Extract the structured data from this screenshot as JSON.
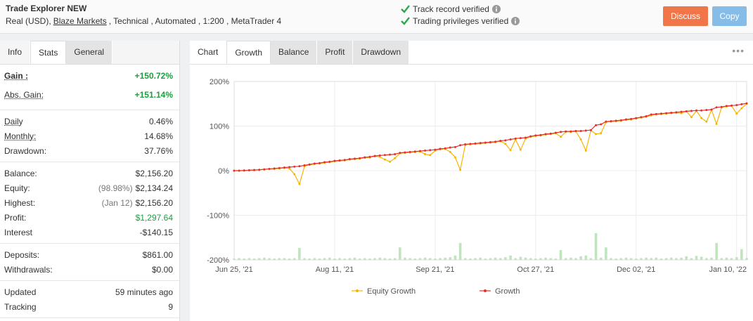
{
  "header": {
    "title": "Trade Explorer NEW",
    "subtitle": [
      "Real (USD),",
      "Blaze Markets",
      ", Technical , Automated , 1:200 , MetaTrader 4"
    ],
    "verified": [
      "Track record verified",
      "Trading privileges verified"
    ],
    "buttons": [
      "Discuss",
      "Copy"
    ]
  },
  "left_tabs": [
    "Info",
    "Stats",
    "General"
  ],
  "stats": [
    [
      {
        "label": "Gain :",
        "value": "+150.72%",
        "color": "#1e9e3e"
      },
      {
        "label": "Abs. Gain:",
        "value": "+151.14%",
        "color": "#1e9e3e"
      }
    ],
    [
      {
        "label": "Daily",
        "value": "0.46%"
      },
      {
        "label": "Monthly:",
        "value": "14.68%"
      },
      {
        "label": "Drawdown:",
        "value": "37.76%"
      }
    ],
    [
      {
        "label": "Balance:",
        "value": "$2,156.20"
      },
      {
        "label": "Equity:",
        "note": "(98.98%)",
        "value": "$2,134.24"
      },
      {
        "label": "Highest:",
        "note": "(Jan 12)",
        "value": "$2,156.20"
      },
      {
        "label": "Profit:",
        "value": "$1,297.64",
        "color": "#1e9e3e"
      },
      {
        "label": "Interest",
        "value": "-$140.15"
      }
    ],
    [
      {
        "label": "Deposits:",
        "value": "$861.00"
      },
      {
        "label": "Withdrawals:",
        "value": "$0.00"
      }
    ],
    [
      {
        "label": "Updated",
        "value": "59 minutes ago"
      },
      {
        "label": "Tracking",
        "value": "9"
      }
    ]
  ],
  "chart_tabs": [
    "Chart",
    "Growth",
    "Balance",
    "Profit",
    "Drawdown"
  ],
  "chart_data": {
    "type": "line",
    "categories": [
      "Jun 25, '21",
      null,
      null,
      null,
      null,
      null,
      null,
      null,
      null,
      null,
      null,
      null,
      null,
      null,
      null,
      null,
      null,
      null,
      null,
      null,
      "Aug 11, '21",
      null,
      null,
      null,
      null,
      null,
      null,
      null,
      null,
      null,
      null,
      null,
      null,
      null,
      null,
      null,
      null,
      null,
      null,
      null,
      "Sep 21, '21",
      null,
      null,
      null,
      null,
      null,
      null,
      null,
      null,
      null,
      null,
      null,
      null,
      null,
      null,
      null,
      null,
      null,
      null,
      null,
      "Oct 27, '21",
      null,
      null,
      null,
      null,
      null,
      null,
      null,
      null,
      null,
      null,
      null,
      null,
      null,
      null,
      null,
      null,
      null,
      null,
      null,
      "Dec 02, '21",
      null,
      null,
      null,
      null,
      null,
      null,
      null,
      null,
      null,
      null,
      null,
      null,
      null,
      null,
      null,
      null,
      null,
      null,
      null,
      "Jan 10, '22",
      null,
      null
    ],
    "series": [
      {
        "type": "bar",
        "color": "#bfe5bf",
        "values": [
          -197,
          -196,
          -197,
          -196,
          -197,
          -196,
          -195,
          -196,
          -197,
          -196,
          -196,
          -197,
          -196,
          -173,
          -196,
          -197,
          -196,
          -197,
          -196,
          -195,
          -197,
          -196,
          -197,
          -196,
          -195,
          -197,
          -196,
          -197,
          -196,
          -195,
          -196,
          -197,
          -196,
          -172,
          -195,
          -196,
          -197,
          -196,
          -195,
          -196,
          -197,
          -196,
          -195,
          -194,
          -190,
          -162,
          -196,
          -197,
          -196,
          -195,
          -197,
          -196,
          -195,
          -196,
          -194,
          -190,
          -196,
          -193,
          -195,
          -196,
          -197,
          -196,
          -195,
          -196,
          -197,
          -178,
          -196,
          -195,
          -196,
          -192,
          -190,
          -196,
          -140,
          -195,
          -172,
          -196,
          -197,
          -196,
          -195,
          -196,
          -197,
          -196,
          -195,
          -196,
          -195,
          -197,
          -196,
          -195,
          -196,
          -195,
          -192,
          -196,
          -191,
          -193,
          -196,
          -195,
          -162,
          -196,
          -195,
          -196,
          -194,
          -176,
          -196
        ]
      },
      {
        "name": "Equity Growth",
        "color": "#f7b500",
        "values": [
          0,
          0,
          0,
          1,
          1,
          2,
          3,
          4,
          4,
          5,
          6,
          5,
          -8,
          -30,
          10,
          13,
          15,
          16,
          18,
          19,
          21,
          22,
          23,
          25,
          26,
          27,
          29,
          30,
          32,
          31,
          25,
          20,
          28,
          39,
          40,
          41,
          42,
          43,
          37,
          35,
          45,
          48,
          49,
          42,
          30,
          2,
          58,
          59,
          60,
          61,
          62,
          63,
          64,
          66,
          60,
          46,
          70,
          47,
          72,
          76,
          78,
          79,
          81,
          82,
          84,
          76,
          87,
          87,
          88,
          70,
          45,
          90,
          82,
          84,
          109,
          110,
          111,
          112,
          114,
          115,
          117,
          119,
          121,
          124,
          126,
          127,
          128,
          129,
          130,
          129,
          133,
          120,
          134,
          118,
          110,
          136,
          105,
          142,
          144,
          145,
          128,
          140,
          150
        ]
      },
      {
        "name": "Growth",
        "color": "#e8302c",
        "values": [
          0,
          0,
          0.5,
          1,
          1.5,
          2,
          3,
          4,
          5,
          6,
          7,
          8,
          9,
          10,
          12,
          14,
          16,
          17,
          19,
          20,
          22,
          23,
          24,
          26,
          27,
          28,
          30,
          31,
          33,
          34,
          35,
          36,
          37,
          40,
          41,
          42,
          43,
          44,
          45,
          46,
          47,
          49,
          50,
          52,
          53,
          57,
          59,
          60,
          61,
          62,
          63,
          64,
          65,
          67,
          68,
          70,
          72,
          73,
          74,
          77,
          79,
          80,
          82,
          83,
          85,
          87,
          88,
          88,
          89,
          89,
          90,
          91,
          102,
          104,
          110,
          111,
          112,
          113,
          115,
          116,
          118,
          120,
          122,
          126,
          127,
          128,
          129,
          130,
          131,
          132,
          133,
          134,
          135,
          135,
          136,
          137,
          142,
          143,
          145,
          146,
          147,
          149,
          151
        ]
      }
    ],
    "ylim": [
      -200,
      200
    ],
    "yticks": [
      {
        "value": -200,
        "label": "-200%"
      },
      {
        "value": -100,
        "label": "-100%"
      },
      {
        "value": 0,
        "label": "0%"
      },
      {
        "value": 100,
        "label": "100%"
      },
      {
        "value": 200,
        "label": "200%"
      }
    ],
    "grid": true
  }
}
